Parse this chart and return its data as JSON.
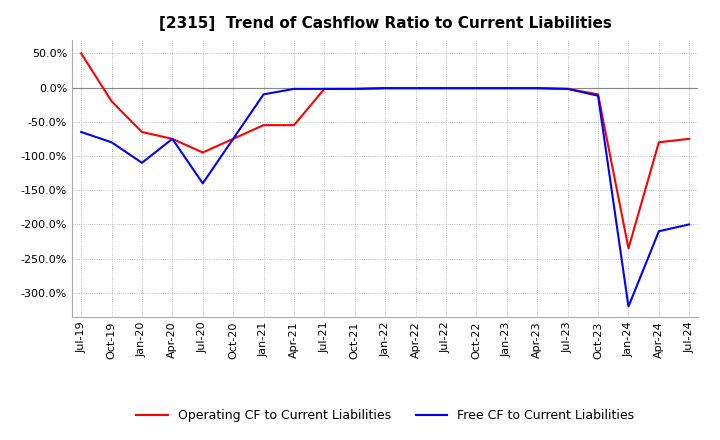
{
  "title": "[2315]  Trend of Cashflow Ratio to Current Liabilities",
  "ylim": [
    -335,
    70
  ],
  "yticks": [
    50.0,
    0.0,
    -50.0,
    -100.0,
    -150.0,
    -200.0,
    -250.0,
    -300.0
  ],
  "x_labels": [
    "Jul-19",
    "Oct-19",
    "Jan-20",
    "Apr-20",
    "Jul-20",
    "Oct-20",
    "Jan-21",
    "Apr-21",
    "Jul-21",
    "Oct-21",
    "Jan-22",
    "Apr-22",
    "Jul-22",
    "Oct-22",
    "Jan-23",
    "Apr-23",
    "Jul-23",
    "Oct-23",
    "Jan-24",
    "Apr-24",
    "Jul-24"
  ],
  "operating_cf": [
    50.0,
    -20.0,
    -65.0,
    -75.0,
    -95.0,
    -75.0,
    -55.0,
    -55.0,
    -2.0,
    -2.0,
    -1.0,
    -1.0,
    -1.0,
    -1.0,
    -1.0,
    -1.0,
    -2.0,
    -10.0,
    -235.0,
    -80.0,
    -75.0
  ],
  "free_cf": [
    -65.0,
    -80.0,
    -110.0,
    -75.0,
    -140.0,
    -75.0,
    -10.0,
    -2.0,
    -2.0,
    -2.0,
    -1.0,
    -1.0,
    -1.0,
    -1.0,
    -1.0,
    -1.0,
    -2.0,
    -12.0,
    -320.0,
    -210.0,
    -200.0
  ],
  "operating_color": "#ff0000",
  "free_color": "#0000ff",
  "grid_color": "#aaaaaa",
  "background_color": "#ffffff",
  "title_fontsize": 11,
  "legend_fontsize": 9,
  "tick_fontsize": 8
}
